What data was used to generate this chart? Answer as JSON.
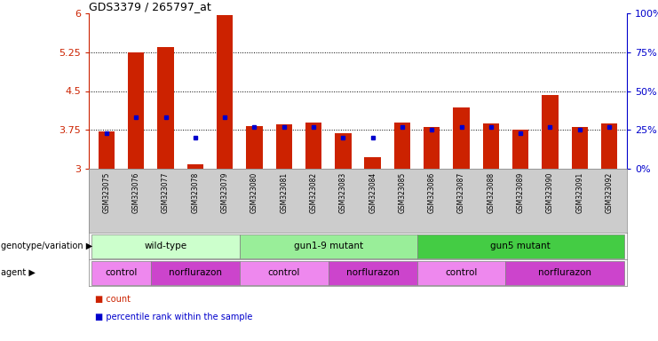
{
  "title": "GDS3379 / 265797_at",
  "samples": [
    "GSM323075",
    "GSM323076",
    "GSM323077",
    "GSM323078",
    "GSM323079",
    "GSM323080",
    "GSM323081",
    "GSM323082",
    "GSM323083",
    "GSM323084",
    "GSM323085",
    "GSM323086",
    "GSM323087",
    "GSM323088",
    "GSM323089",
    "GSM323090",
    "GSM323091",
    "GSM323092"
  ],
  "counts": [
    3.72,
    5.25,
    5.35,
    3.08,
    5.97,
    3.83,
    3.85,
    3.9,
    3.68,
    3.23,
    3.9,
    3.8,
    4.18,
    3.87,
    3.75,
    4.42,
    3.8,
    3.87
  ],
  "percentiles": [
    23,
    33,
    33,
    20,
    33,
    27,
    27,
    27,
    20,
    20,
    27,
    25,
    27,
    27,
    23,
    27,
    25,
    27
  ],
  "bar_color": "#cc2200",
  "dot_color": "#0000cc",
  "ymin": 3.0,
  "ymax": 6.0,
  "yticks": [
    3.0,
    3.75,
    4.5,
    5.25,
    6.0
  ],
  "ytick_labels": [
    "3",
    "3.75",
    "4.5",
    "5.25",
    "6"
  ],
  "right_yticks": [
    0,
    25,
    50,
    75,
    100
  ],
  "right_ytick_labels": [
    "0%",
    "25%",
    "50%",
    "75%",
    "100%"
  ],
  "dotted_lines": [
    3.75,
    4.5,
    5.25
  ],
  "genotype_groups": [
    {
      "label": "wild-type",
      "start": 0,
      "end": 5,
      "color": "#ccffcc"
    },
    {
      "label": "gun1-9 mutant",
      "start": 5,
      "end": 11,
      "color": "#99ee99"
    },
    {
      "label": "gun5 mutant",
      "start": 11,
      "end": 18,
      "color": "#44cc44"
    }
  ],
  "agent_groups": [
    {
      "label": "control",
      "start": 0,
      "end": 2,
      "color": "#ee88ee"
    },
    {
      "label": "norflurazon",
      "start": 2,
      "end": 5,
      "color": "#cc44cc"
    },
    {
      "label": "control",
      "start": 5,
      "end": 8,
      "color": "#ee88ee"
    },
    {
      "label": "norflurazon",
      "start": 8,
      "end": 11,
      "color": "#cc44cc"
    },
    {
      "label": "control",
      "start": 11,
      "end": 14,
      "color": "#ee88ee"
    },
    {
      "label": "norflurazon",
      "start": 14,
      "end": 18,
      "color": "#cc44cc"
    }
  ],
  "legend_count_color": "#cc2200",
  "legend_dot_color": "#0000cc",
  "xtick_bg_color": "#cccccc",
  "left_label_color": "#555555"
}
